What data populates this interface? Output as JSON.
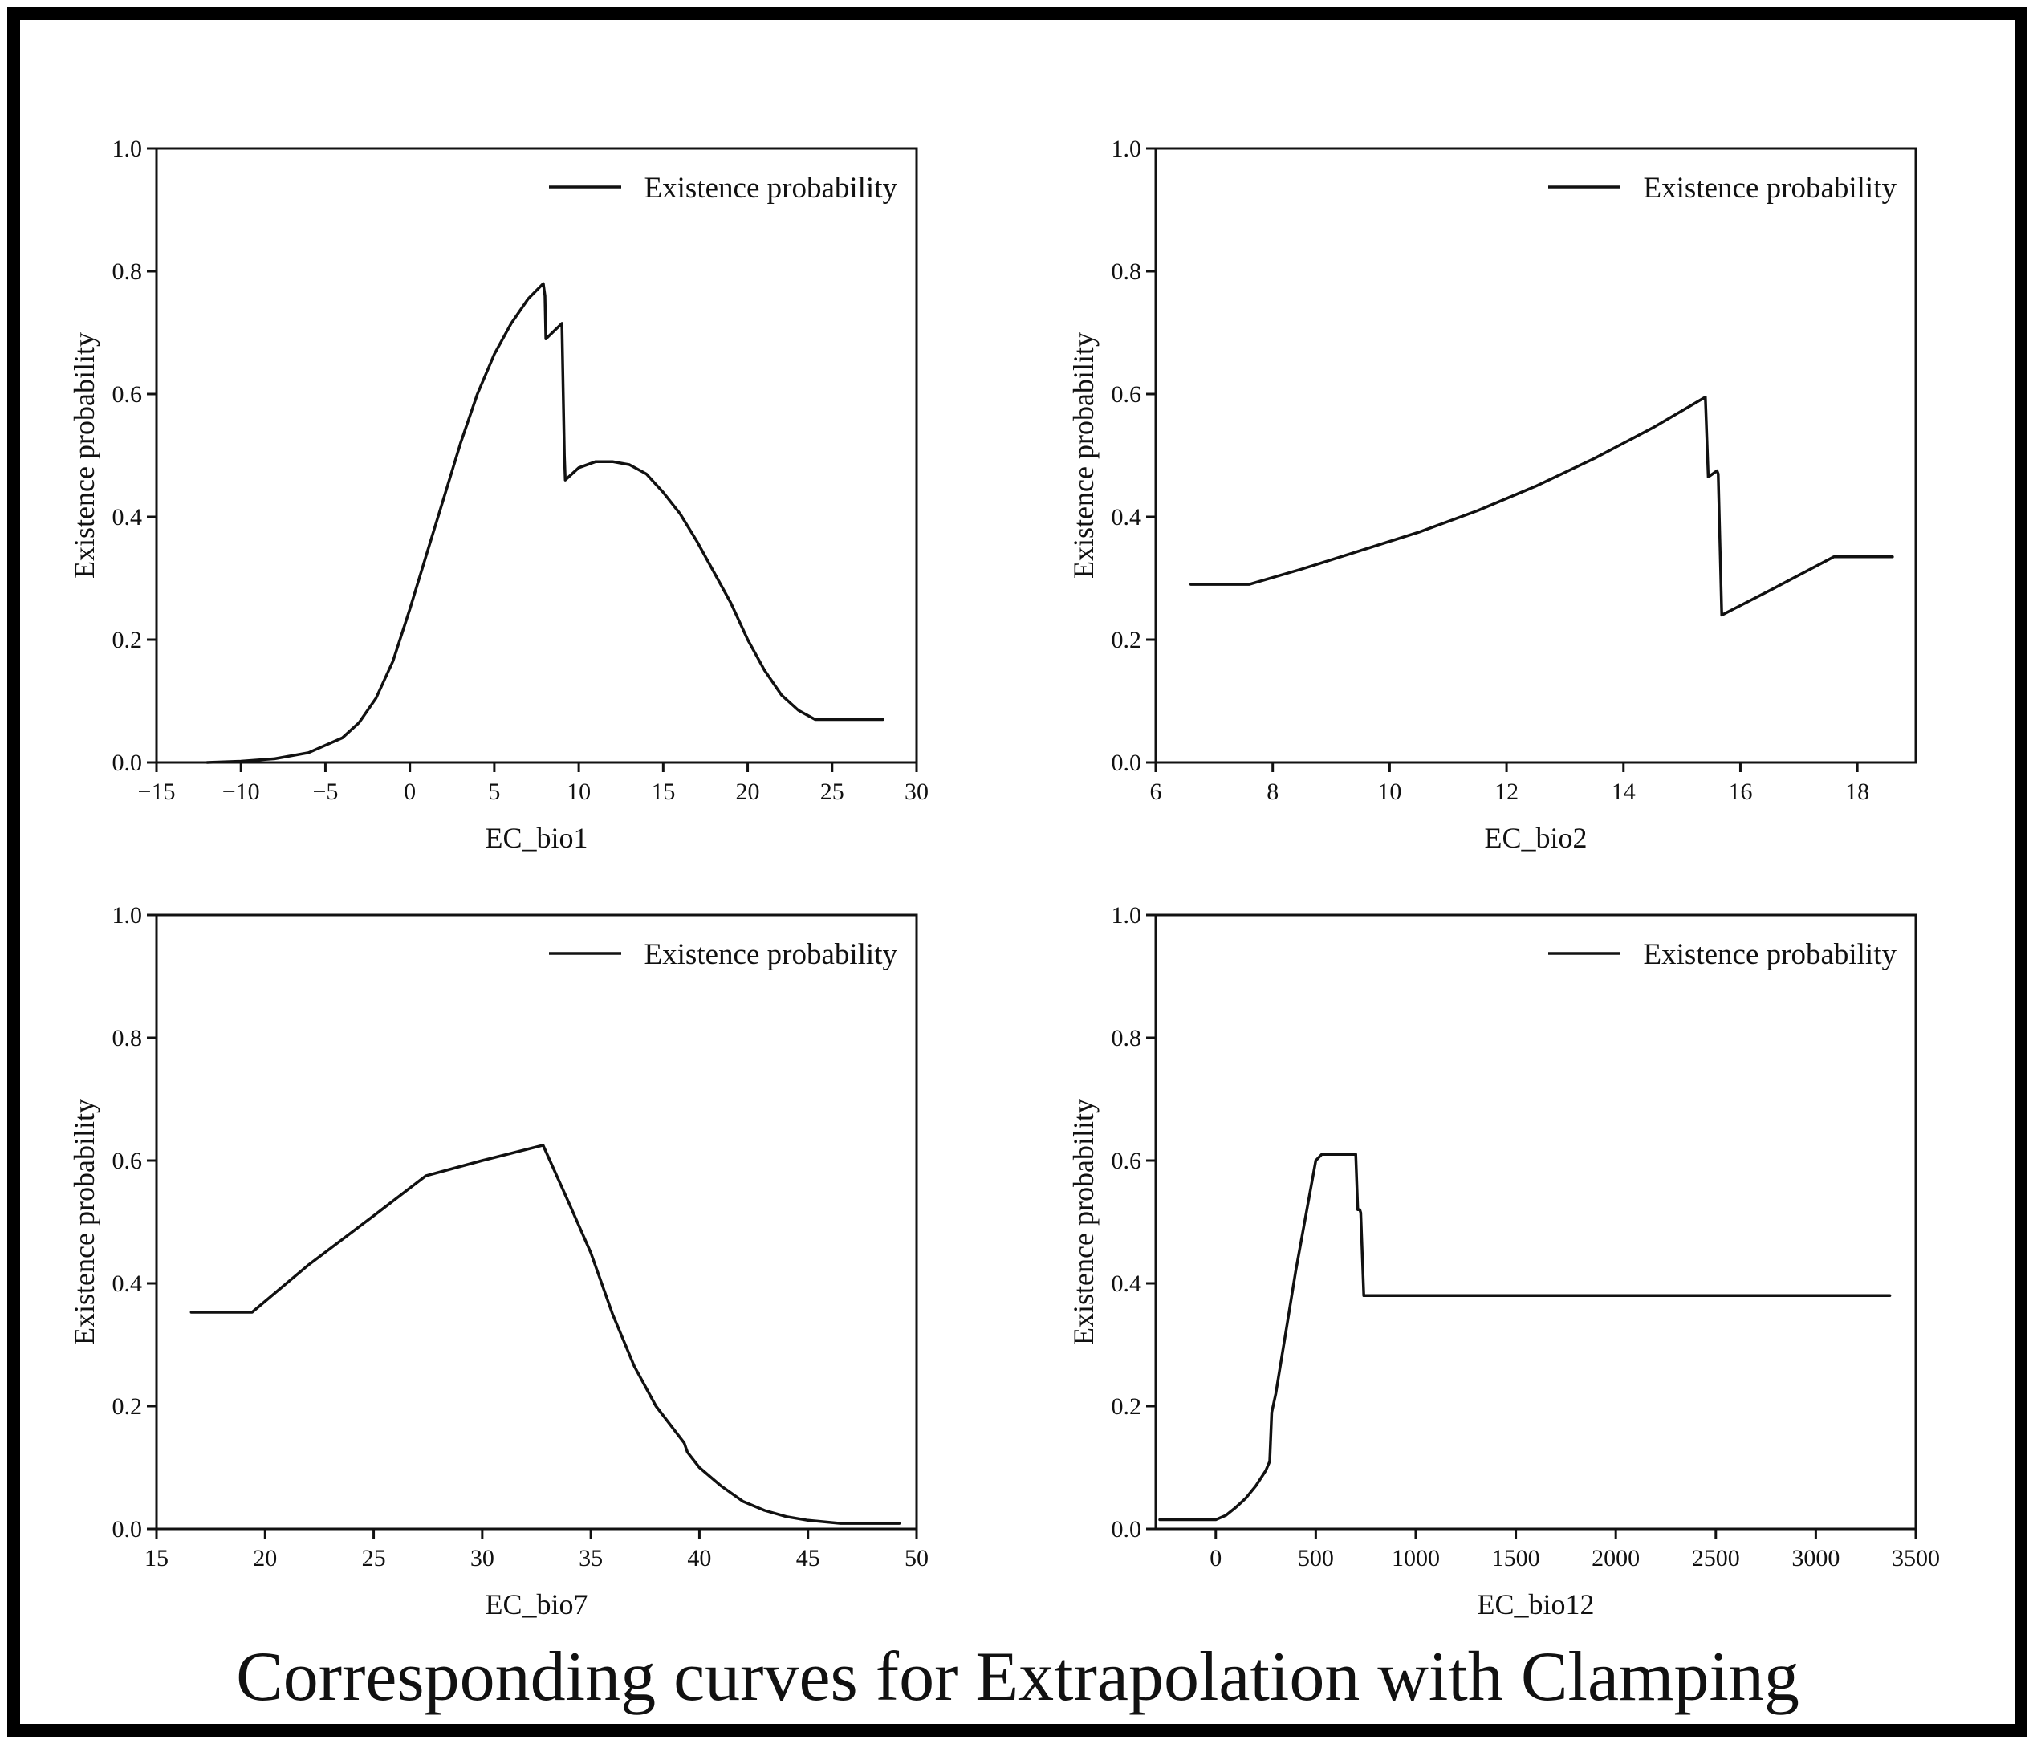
{
  "title": "Corresponding curves for Extrapolation with Clamping",
  "colors": {
    "border": "#000000",
    "line": "#111111",
    "background": "#ffffff"
  },
  "chart_data": [
    {
      "type": "line",
      "id": "bio1",
      "xlabel": "EC_bio1",
      "ylabel": "Existence probability",
      "xlim": [
        -15,
        30
      ],
      "ylim": [
        0,
        1
      ],
      "xticks": [
        -15,
        -10,
        -5,
        0,
        5,
        10,
        15,
        20,
        25,
        30
      ],
      "xtick_labels": [
        "−15",
        "−10",
        "−5",
        "0",
        "5",
        "10",
        "15",
        "20",
        "25",
        "30"
      ],
      "yticks": [
        0,
        0.2,
        0.4,
        0.6,
        0.8,
        1.0
      ],
      "ytick_labels": [
        "0.0",
        "0.2",
        "0.4",
        "0.6",
        "0.8",
        "1.0"
      ],
      "legend": {
        "label": "Existence probability",
        "position": "top-right"
      },
      "grid": false,
      "series": [
        {
          "name": "Existence probability",
          "x": [
            -12,
            -10,
            -8,
            -6,
            -4,
            -3,
            -2,
            -1,
            0,
            1,
            2,
            3,
            4,
            5,
            6,
            7,
            7.9,
            8.0,
            8.05,
            9.0,
            9.15,
            9.2,
            10,
            11,
            12,
            13,
            14,
            15,
            16,
            17,
            18,
            19,
            20,
            21,
            22,
            23,
            24,
            25,
            26,
            27,
            28
          ],
          "y": [
            0.0,
            0.002,
            0.006,
            0.016,
            0.04,
            0.065,
            0.105,
            0.165,
            0.25,
            0.34,
            0.43,
            0.52,
            0.6,
            0.665,
            0.715,
            0.755,
            0.78,
            0.76,
            0.69,
            0.715,
            0.5,
            0.46,
            0.48,
            0.49,
            0.49,
            0.485,
            0.47,
            0.44,
            0.405,
            0.36,
            0.31,
            0.26,
            0.2,
            0.15,
            0.11,
            0.085,
            0.07,
            0.07,
            0.07,
            0.07,
            0.07
          ]
        }
      ]
    },
    {
      "type": "line",
      "id": "bio2",
      "xlabel": "EC_bio2",
      "ylabel": "Existence probability",
      "xlim": [
        6,
        19
      ],
      "ylim": [
        0,
        1
      ],
      "xticks": [
        6,
        8,
        10,
        12,
        14,
        16,
        18
      ],
      "xtick_labels": [
        "6",
        "8",
        "10",
        "12",
        "14",
        "16",
        "18"
      ],
      "yticks": [
        0,
        0.2,
        0.4,
        0.6,
        0.8,
        1.0
      ],
      "ytick_labels": [
        "0.0",
        "0.2",
        "0.4",
        "0.6",
        "0.8",
        "1.0"
      ],
      "legend": {
        "label": "Existence probability",
        "position": "top-right"
      },
      "grid": false,
      "series": [
        {
          "name": "Existence probability",
          "x": [
            6.6,
            7.6,
            8.5,
            9.5,
            10.5,
            11.5,
            12.5,
            13.5,
            14.5,
            15.4,
            15.45,
            15.6,
            15.62,
            15.68,
            16.5,
            17.6,
            18.6
          ],
          "y": [
            0.29,
            0.29,
            0.315,
            0.345,
            0.375,
            0.41,
            0.45,
            0.495,
            0.545,
            0.595,
            0.465,
            0.475,
            0.47,
            0.24,
            0.28,
            0.335,
            0.335
          ]
        }
      ]
    },
    {
      "type": "line",
      "id": "bio7",
      "xlabel": "EC_bio7",
      "ylabel": "Existence probability",
      "xlim": [
        15,
        50
      ],
      "ylim": [
        0,
        1
      ],
      "xticks": [
        15,
        20,
        25,
        30,
        35,
        40,
        45,
        50
      ],
      "xtick_labels": [
        "15",
        "20",
        "25",
        "30",
        "35",
        "40",
        "45",
        "50"
      ],
      "yticks": [
        0,
        0.2,
        0.4,
        0.6,
        0.8,
        1.0
      ],
      "ytick_labels": [
        "0.0",
        "0.2",
        "0.4",
        "0.6",
        "0.8",
        "1.0"
      ],
      "legend": {
        "label": "Existence probability",
        "position": "top-right"
      },
      "grid": false,
      "series": [
        {
          "name": "Existence probability",
          "x": [
            16.6,
            19.4,
            22,
            25,
            27.4,
            30,
            32.8,
            34,
            35,
            36,
            37,
            38,
            39.3,
            39.45,
            40,
            41,
            42,
            43,
            44,
            45,
            46.5,
            49.2
          ],
          "y": [
            0.353,
            0.353,
            0.43,
            0.51,
            0.575,
            0.6,
            0.625,
            0.53,
            0.45,
            0.35,
            0.265,
            0.2,
            0.14,
            0.125,
            0.1,
            0.07,
            0.045,
            0.03,
            0.02,
            0.014,
            0.009,
            0.009
          ]
        }
      ]
    },
    {
      "type": "line",
      "id": "bio12",
      "xlabel": "EC_bio12",
      "ylabel": "Existence probability",
      "xlim": [
        -300,
        3500
      ],
      "ylim": [
        0,
        1
      ],
      "xticks": [
        0,
        500,
        1000,
        1500,
        2000,
        2500,
        3000,
        3500
      ],
      "xtick_labels": [
        "0",
        "500",
        "1000",
        "1500",
        "2000",
        "2500",
        "3000",
        "3500"
      ],
      "yticks": [
        0,
        0.2,
        0.4,
        0.6,
        0.8,
        1.0
      ],
      "ytick_labels": [
        "0.0",
        "0.2",
        "0.4",
        "0.6",
        "0.8",
        "1.0"
      ],
      "legend": {
        "label": "Existence probability",
        "position": "top-right"
      },
      "grid": false,
      "series": [
        {
          "name": "Existence probability",
          "x": [
            -280,
            0,
            50,
            100,
            150,
            200,
            250,
            270,
            280,
            300,
            350,
            400,
            450,
            500,
            530,
            700,
            710,
            720,
            725,
            740,
            3370
          ],
          "y": [
            0.015,
            0.015,
            0.022,
            0.035,
            0.05,
            0.07,
            0.095,
            0.11,
            0.19,
            0.22,
            0.32,
            0.42,
            0.51,
            0.6,
            0.61,
            0.61,
            0.52,
            0.52,
            0.515,
            0.38,
            0.38
          ]
        }
      ]
    }
  ]
}
